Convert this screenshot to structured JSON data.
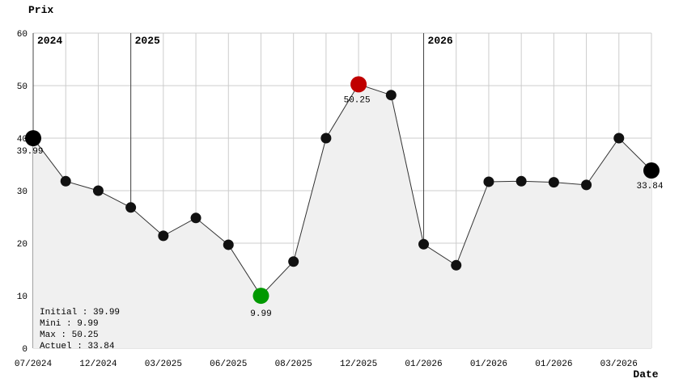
{
  "chart_data": {
    "type": "line",
    "title": "Prix",
    "xlabel": "Date",
    "ylabel": "Prix",
    "ylim": [
      0,
      60
    ],
    "yticks": [
      0,
      10,
      20,
      30,
      40,
      50,
      60
    ],
    "grid": true,
    "legend_position": "bottom-left",
    "x_tick_labels": [
      "07/2024",
      "12/2024",
      "03/2025",
      "06/2025",
      "08/2025",
      "12/2025",
      "01/2026",
      "01/2026",
      "01/2026",
      "03/2026"
    ],
    "x_tick_point_indices": [
      0,
      2,
      4,
      6,
      8,
      10,
      12,
      14,
      16,
      18
    ],
    "values": [
      39.99,
      31.8,
      30,
      26.8,
      21.4,
      24.8,
      19.7,
      9.99,
      16.5,
      40,
      50.25,
      48.2,
      19.8,
      15.8,
      31.7,
      31.8,
      31.6,
      31.1,
      40,
      33.84
    ],
    "year_markers": [
      {
        "label": "2024",
        "point_index": 0
      },
      {
        "label": "2025",
        "point_index": 3
      },
      {
        "label": "2026",
        "point_index": 12
      }
    ],
    "special_points": [
      {
        "point_index": 0,
        "role": "initial",
        "label": "39.99",
        "color": "#000000"
      },
      {
        "point_index": 7,
        "role": "min",
        "label": "9.99",
        "color": "#009900"
      },
      {
        "point_index": 10,
        "role": "max",
        "label": "50.25",
        "color": "#c00000"
      },
      {
        "point_index": 19,
        "role": "current",
        "label": "33.84",
        "color": "#000000"
      }
    ],
    "legend": [
      {
        "label": "Initial : 39.99",
        "color": "#000000"
      },
      {
        "label": "Mini : 9.99",
        "color": "#009900"
      },
      {
        "label": "Max : 50.25",
        "color": "#c00000"
      },
      {
        "label": "Actuel : 33.84",
        "color": "#000000"
      }
    ],
    "colors": {
      "line": "#333333",
      "point": "#111111",
      "area_fill": "#f0f0f0",
      "grid": "#cccccc",
      "year_line": "#444444",
      "background": "#ffffff",
      "text": "#000000"
    }
  }
}
